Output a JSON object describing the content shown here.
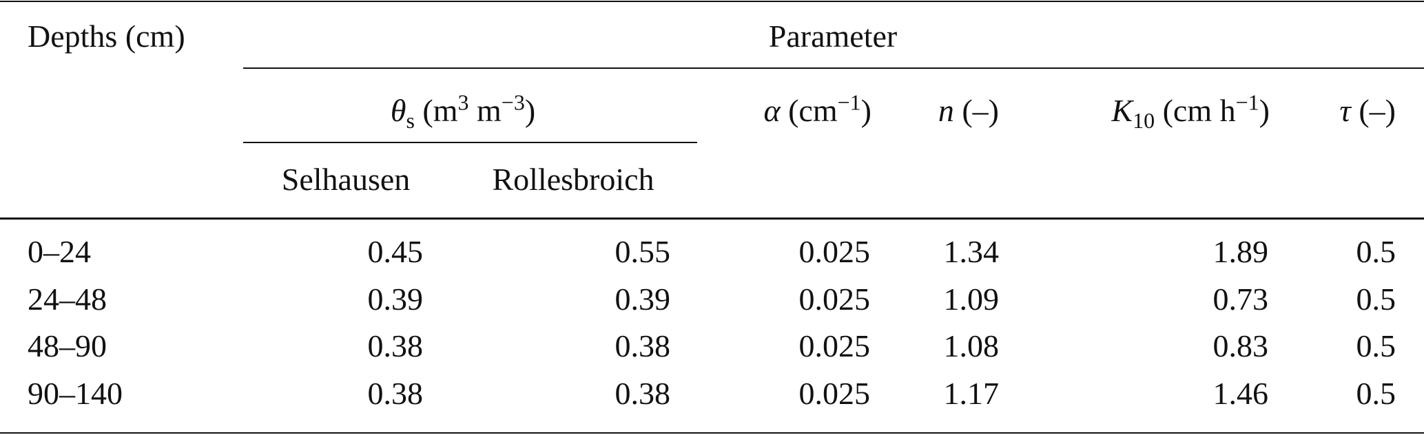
{
  "table": {
    "stub_header": "Depths (cm)",
    "spanner": "Parameter",
    "columns": {
      "theta_s": [
        "θ",
        "s",
        " (m",
        "3",
        " m",
        "−3",
        ")"
      ],
      "alpha": [
        "α",
        " (cm",
        "−1",
        ")"
      ],
      "n": [
        "n",
        " (–)"
      ],
      "k10": [
        "K",
        "10",
        " (cm h",
        "−1",
        ")"
      ],
      "tau": [
        "τ",
        " (–)"
      ]
    },
    "sub_columns": [
      "Selhausen",
      "Rollesbroich"
    ],
    "rows": [
      [
        "0–24",
        "0.45",
        "0.55",
        "0.025",
        "1.34",
        "1.89",
        "0.5"
      ],
      [
        "24–48",
        "0.39",
        "0.39",
        "0.025",
        "1.09",
        "0.73",
        "0.5"
      ],
      [
        "48–90",
        "0.38",
        "0.38",
        "0.025",
        "1.08",
        "0.83",
        "0.5"
      ],
      [
        "90–140",
        "0.38",
        "0.38",
        "0.025",
        "1.17",
        "1.46",
        "0.5"
      ]
    ]
  }
}
